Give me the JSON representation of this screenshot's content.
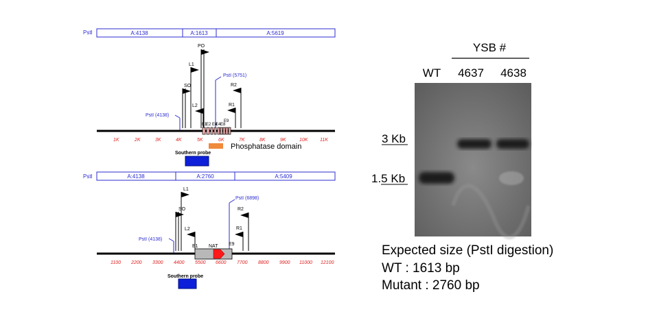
{
  "top_map": {
    "enzyme": "PstI",
    "segments": [
      "A:4138",
      "A:1613",
      "A:5619"
    ],
    "markers": [
      "PO",
      "L1",
      "SO",
      "L2",
      "R2",
      "R1"
    ],
    "pst_left": "PstI (4138)",
    "pst_right": "PstI (5751)",
    "exon_labels": [
      "E1",
      "E2",
      "E3",
      "E4",
      "E5",
      "E6",
      "E7",
      "E8",
      "E9"
    ],
    "ticks": [
      "1K",
      "2K",
      "3K",
      "4K",
      "5K",
      "6K",
      "7K",
      "8K",
      "9K",
      "10K",
      "11K"
    ],
    "domain_label": "Phosphatase domain",
    "probe_label": "Southern probe"
  },
  "bottom_map": {
    "enzyme": "PstI",
    "segments": [
      "A:4138",
      "A:2760",
      "A:5409"
    ],
    "markers": [
      "L1",
      "SO",
      "L2",
      "R2",
      "R1"
    ],
    "pst_left": "PstI (4138)",
    "pst_right": "PstI (6898)",
    "exon_labels": [
      "E1",
      "NAT",
      "E9"
    ],
    "ticks": [
      "1100",
      "2200",
      "3300",
      "4400",
      "5500",
      "6600",
      "7700",
      "8800",
      "9900",
      "11000",
      "12100"
    ],
    "probe_label": "Southern probe"
  },
  "blot": {
    "header": "YSB #",
    "lanes": [
      "WT",
      "4637",
      "4638"
    ],
    "markers": [
      "3 Kb",
      "1.5 Kb"
    ],
    "band_color": "#1a1a1a",
    "background_color": "#6e6e6e"
  },
  "caption": {
    "line1": "Expected size (PstI digestion)",
    "line2": "WT : 1613 bp",
    "line3": "Mutant : 2760 bp"
  },
  "colors": {
    "segment_text": "#2b2bd0",
    "tick_text": "#e02020",
    "probe": "#0d1fd8",
    "domain": "#f08a3c",
    "exon": "#f4b0b0",
    "nat_arrow": "#ff1a1a",
    "nat_box": "#b8b8b8"
  }
}
